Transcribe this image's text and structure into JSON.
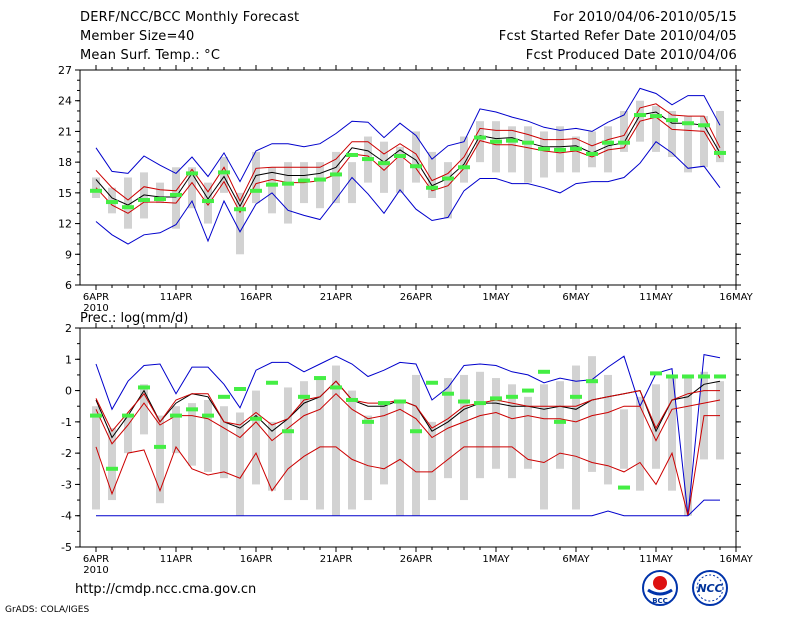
{
  "header": {
    "title": "DERF/NCC/BCC Monthly Forecast",
    "member": "Member Size=40",
    "var1": "Mean Surf. Temp.: °C",
    "period": "For 2010/04/06-2010/05/15",
    "refer": "Fcst Started Refer Date 2010/04/05",
    "produced": "Fcst Produced Date 2010/04/06"
  },
  "footer": {
    "url": "http://cmdp.ncc.cma.gov.cn",
    "grads": "GrADS: COLA/IGES",
    "logo1": "BCC",
    "logo2": "NCC"
  },
  "colors": {
    "max": "#0000cc",
    "spread": "#cc0000",
    "mean": "#000000",
    "obs": "#44ee44",
    "box": "#d2d2d2"
  },
  "chart_data": [
    {
      "type": "line",
      "title": "Mean Surf. Temp.: °C",
      "ylim": [
        6,
        27
      ],
      "yticks": [
        6,
        9,
        12,
        15,
        18,
        21,
        24,
        27
      ],
      "x_day_labels": [
        "6APR",
        "11APR",
        "16APR",
        "21APR",
        "26APR",
        "1MAY",
        "6MAY",
        "11MAY",
        "16MAY"
      ],
      "x_year_label": "2010",
      "days": 40,
      "series": [
        {
          "name": "max",
          "values": [
            19.4,
            17.1,
            16.9,
            18.6,
            17.7,
            16.9,
            18.5,
            16.6,
            18.9,
            16.1,
            19.1,
            19.8,
            19.8,
            19.5,
            19.8,
            20.8,
            22.0,
            21.9,
            20.4,
            21.8,
            20.6,
            18.3,
            19.6,
            20.0,
            23.2,
            22.9,
            22.4,
            22.0,
            21.4,
            21.1,
            21.3,
            21.0,
            21.9,
            22.6,
            25.2,
            24.7,
            23.6,
            24.5,
            24.5,
            21.6
          ]
        },
        {
          "name": "upper",
          "values": [
            17.2,
            15.5,
            14.3,
            15.6,
            15.3,
            15.2,
            17.3,
            15.1,
            17.5,
            14.2,
            17.4,
            17.5,
            17.5,
            17.5,
            17.5,
            18.3,
            20.0,
            20.0,
            18.8,
            19.8,
            18.8,
            16.2,
            16.9,
            18.5,
            21.3,
            21.1,
            21.1,
            20.7,
            20.2,
            20.2,
            20.3,
            19.6,
            20.2,
            20.6,
            23.3,
            23.7,
            22.6,
            22.5,
            22.5,
            19.4
          ]
        },
        {
          "name": "mean",
          "values": [
            16.3,
            14.5,
            13.8,
            14.8,
            14.6,
            14.6,
            16.9,
            14.4,
            16.6,
            13.7,
            16.7,
            17.0,
            16.7,
            16.7,
            16.9,
            17.5,
            19.4,
            19.1,
            18.0,
            19.2,
            18.2,
            15.7,
            16.4,
            17.8,
            20.6,
            20.3,
            20.4,
            19.9,
            19.5,
            19.5,
            19.6,
            18.9,
            19.6,
            19.9,
            22.6,
            22.9,
            21.8,
            21.8,
            21.6,
            18.9
          ]
        },
        {
          "name": "lower",
          "values": [
            15.5,
            13.8,
            13.0,
            14.1,
            14.1,
            14.0,
            16.0,
            13.8,
            16.1,
            13.1,
            15.9,
            16.3,
            16.0,
            16.0,
            16.2,
            16.8,
            18.8,
            18.6,
            17.2,
            18.7,
            17.4,
            15.2,
            15.7,
            17.4,
            20.1,
            19.7,
            19.7,
            19.4,
            19.1,
            18.9,
            19.1,
            18.5,
            19.2,
            19.4,
            22.0,
            22.4,
            21.2,
            21.1,
            21.0,
            18.4
          ]
        },
        {
          "name": "min",
          "values": [
            12.2,
            10.9,
            10.0,
            10.9,
            11.1,
            11.9,
            14.2,
            10.3,
            14.2,
            11.2,
            13.9,
            15.0,
            13.3,
            12.8,
            12.4,
            14.4,
            16.5,
            14.9,
            13.0,
            15.3,
            13.4,
            12.3,
            12.6,
            15.2,
            16.4,
            16.4,
            15.9,
            15.9,
            15.5,
            15.0,
            15.9,
            16.1,
            16.1,
            16.5,
            17.9,
            20.0,
            18.9,
            17.4,
            17.6,
            15.5
          ]
        }
      ],
      "boxes": [
        [
          14.5,
          16.5
        ],
        [
          13.0,
          15.5
        ],
        [
          11.5,
          16.5
        ],
        [
          12.5,
          17.0
        ],
        [
          14.0,
          16.0
        ],
        [
          11.5,
          17.5
        ],
        [
          13.5,
          17.5
        ],
        [
          12.0,
          16.0
        ],
        [
          15.0,
          18.5
        ],
        [
          9.0,
          15.0
        ],
        [
          14.0,
          19.0
        ],
        [
          13.0,
          17.5
        ],
        [
          12.0,
          18.0
        ],
        [
          14.0,
          18.0
        ],
        [
          13.5,
          18.0
        ],
        [
          14.0,
          19.0
        ],
        [
          14.0,
          18.0
        ],
        [
          16.0,
          20.5
        ],
        [
          15.0,
          20.0
        ],
        [
          15.0,
          19.5
        ],
        [
          16.0,
          21.0
        ],
        [
          14.5,
          19.0
        ],
        [
          12.5,
          18.0
        ],
        [
          16.0,
          20.5
        ],
        [
          18.0,
          22.0
        ],
        [
          17.0,
          22.0
        ],
        [
          17.0,
          21.5
        ],
        [
          16.0,
          21.5
        ],
        [
          16.5,
          21.0
        ],
        [
          17.0,
          21.5
        ],
        [
          17.0,
          20.5
        ],
        [
          17.5,
          21.0
        ],
        [
          17.0,
          21.5
        ],
        [
          19.0,
          23.0
        ],
        [
          20.0,
          24.0
        ],
        [
          19.0,
          23.5
        ],
        [
          18.5,
          23.0
        ],
        [
          17.0,
          22.5
        ],
        [
          17.5,
          22.5
        ],
        [
          18.0,
          23.0
        ]
      ],
      "observed": [
        15.2,
        14.1,
        13.6,
        14.3,
        14.4,
        14.8,
        16.9,
        14.2,
        17.0,
        13.4,
        15.2,
        15.8,
        15.9,
        16.2,
        16.3,
        16.8,
        18.7,
        18.3,
        17.9,
        18.6,
        17.6,
        15.5,
        16.4,
        17.5,
        20.4,
        20.0,
        20.1,
        19.9,
        19.3,
        19.2,
        19.3,
        18.8,
        19.9,
        19.9,
        22.6,
        22.5,
        22.1,
        21.8,
        21.6,
        18.9
      ]
    },
    {
      "type": "line",
      "title": "Prec.: log(mm/d)",
      "ylim": [
        -5,
        2
      ],
      "yticks": [
        -5,
        -4,
        -3,
        -2,
        -1,
        0,
        1,
        2
      ],
      "x_day_labels": [
        "6APR",
        "11APR",
        "16APR",
        "21APR",
        "26APR",
        "1MAY",
        "6MAY",
        "11MAY",
        "16MAY"
      ],
      "x_year_label": "2010",
      "days": 40,
      "series": [
        {
          "name": "max",
          "values": [
            0.85,
            -0.6,
            0.3,
            0.8,
            0.85,
            -0.1,
            0.75,
            0.75,
            0.2,
            -0.55,
            0.65,
            0.9,
            0.9,
            0.6,
            0.85,
            1.1,
            0.85,
            0.45,
            0.65,
            0.9,
            0.85,
            -0.3,
            0.1,
            0.8,
            0.85,
            0.8,
            0.6,
            0.5,
            0.25,
            0.4,
            0.3,
            0.35,
            0.75,
            1.1,
            -0.5,
            0.55,
            0.7,
            -4.0,
            1.15,
            1.05
          ]
        },
        {
          "name": "mean",
          "values": [
            -0.3,
            -1.5,
            -0.8,
            0.0,
            -1.0,
            -0.4,
            -0.1,
            -0.2,
            -1.0,
            -1.2,
            -0.8,
            -1.3,
            -0.9,
            -0.4,
            -0.2,
            0.3,
            -0.3,
            -0.5,
            -0.5,
            -0.3,
            -0.5,
            -1.3,
            -1.0,
            -0.6,
            -0.4,
            -0.4,
            -0.5,
            -0.5,
            -0.6,
            -0.5,
            -0.6,
            -0.3,
            -0.2,
            -0.1,
            0.0,
            -1.3,
            -0.3,
            -0.2,
            0.2,
            0.3
          ]
        },
        {
          "name": "upper",
          "values": [
            -0.25,
            -1.3,
            -0.7,
            -0.1,
            -1.0,
            -0.3,
            -0.1,
            -0.1,
            -1.0,
            -1.1,
            -0.7,
            -1.1,
            -0.9,
            -0.3,
            -0.2,
            0.3,
            -0.3,
            -0.4,
            -0.4,
            -0.3,
            -0.5,
            -1.2,
            -0.9,
            -0.5,
            -0.4,
            -0.3,
            -0.4,
            -0.5,
            -0.5,
            -0.5,
            -0.5,
            -0.3,
            -0.2,
            -0.1,
            0.0,
            -1.2,
            -0.3,
            -0.1,
            0.0,
            0.0
          ]
        },
        {
          "name": "lower",
          "values": [
            -0.6,
            -1.7,
            -1.1,
            -0.4,
            -1.1,
            -0.8,
            -0.8,
            -0.9,
            -1.2,
            -1.5,
            -1.0,
            -1.6,
            -1.2,
            -0.8,
            -0.6,
            -0.1,
            -0.6,
            -0.9,
            -0.8,
            -0.6,
            -0.9,
            -1.5,
            -1.2,
            -1.0,
            -0.8,
            -0.7,
            -0.9,
            -0.8,
            -0.9,
            -0.9,
            -1.0,
            -0.8,
            -0.7,
            -0.5,
            -0.5,
            -1.6,
            -0.6,
            -0.5,
            -0.4,
            -0.3
          ]
        },
        {
          "name": "low",
          "values": [
            -1.8,
            -3.3,
            -2.0,
            -1.9,
            -3.2,
            -1.8,
            -2.5,
            -2.7,
            -2.6,
            -2.8,
            -2.0,
            -3.2,
            -2.5,
            -2.1,
            -1.8,
            -1.8,
            -2.2,
            -2.4,
            -2.5,
            -2.2,
            -2.6,
            -2.6,
            -2.2,
            -1.8,
            -1.8,
            -1.8,
            -1.8,
            -2.2,
            -2.3,
            -2.0,
            -2.1,
            -2.3,
            -2.4,
            -2.6,
            -2.3,
            -3.0,
            -2.0,
            -4.0,
            -0.8,
            -0.8
          ]
        },
        {
          "name": "min",
          "values": [
            -4.0,
            -4.0,
            -4.0,
            -4.0,
            -4.0,
            -4.0,
            -4.0,
            -4.0,
            -4.0,
            -4.0,
            -4.0,
            -4.0,
            -4.0,
            -4.0,
            -4.0,
            -4.0,
            -4.0,
            -4.0,
            -4.0,
            -4.0,
            -4.0,
            -4.0,
            -4.0,
            -4.0,
            -4.0,
            -4.0,
            -4.0,
            -4.0,
            -4.0,
            -4.0,
            -4.0,
            -4.0,
            -3.85,
            -4.0,
            -4.0,
            -4.0,
            -4.0,
            -4.0,
            -3.5,
            -3.5
          ]
        }
      ],
      "boxes": [
        [
          -3.8,
          -0.5
        ],
        [
          -3.5,
          -1.2
        ],
        [
          -2.0,
          -0.8
        ],
        [
          -1.4,
          0.2
        ],
        [
          -3.6,
          -0.8
        ],
        [
          -2.0,
          -0.5
        ],
        [
          -2.4,
          -0.4
        ],
        [
          -2.6,
          -0.3
        ],
        [
          -2.8,
          -0.5
        ],
        [
          -4.0,
          -0.7
        ],
        [
          -3.0,
          0.0
        ],
        [
          -3.2,
          -1.0
        ],
        [
          -3.5,
          0.1
        ],
        [
          -3.5,
          0.3
        ],
        [
          -3.8,
          0.4
        ],
        [
          -4.0,
          0.8
        ],
        [
          -3.8,
          0.0
        ],
        [
          -3.5,
          -0.8
        ],
        [
          -3.0,
          -0.4
        ],
        [
          -4.0,
          -0.3
        ],
        [
          -4.0,
          0.5
        ],
        [
          -3.5,
          -1.0
        ],
        [
          -2.8,
          0.4
        ],
        [
          -3.5,
          0.5
        ],
        [
          -2.8,
          0.6
        ],
        [
          -2.5,
          0.4
        ],
        [
          -2.8,
          0.2
        ],
        [
          -2.5,
          -0.2
        ],
        [
          -3.8,
          0.2
        ],
        [
          -2.5,
          0.3
        ],
        [
          -3.8,
          0.8
        ],
        [
          -2.6,
          1.1
        ],
        [
          -3.0,
          0.5
        ],
        [
          -2.5,
          -0.6
        ],
        [
          -3.2,
          -0.2
        ],
        [
          -2.5,
          0.2
        ],
        [
          -3.2,
          0.5
        ],
        [
          -4.0,
          0.5
        ],
        [
          -2.2,
          0.6
        ],
        [
          -2.2,
          0.3
        ]
      ],
      "observed": [
        -0.8,
        -2.5,
        -0.8,
        0.1,
        -1.8,
        -0.8,
        -0.6,
        -0.8,
        -0.2,
        0.05,
        -0.9,
        0.25,
        -1.3,
        -0.2,
        0.4,
        0.1,
        -0.3,
        -1.0,
        -0.4,
        -0.35,
        -1.3,
        0.25,
        -0.1,
        -0.35,
        -0.4,
        -0.25,
        -0.2,
        0.0,
        0.6,
        -1.0,
        -0.2,
        0.3,
        -3.1,
        0.55,
        0.45,
        0.45,
        0.45,
        0.45,
        0.45,
        0.45
      ],
      "observed_days": [
        0,
        1,
        2,
        3,
        4,
        5,
        6,
        7,
        8,
        9,
        10,
        11,
        12,
        13,
        14,
        15,
        16,
        17,
        18,
        19,
        20,
        21,
        22,
        23,
        24,
        25,
        26,
        27,
        28,
        29,
        30,
        31,
        33,
        35,
        36,
        37,
        38,
        39,
        39,
        39
      ]
    }
  ]
}
